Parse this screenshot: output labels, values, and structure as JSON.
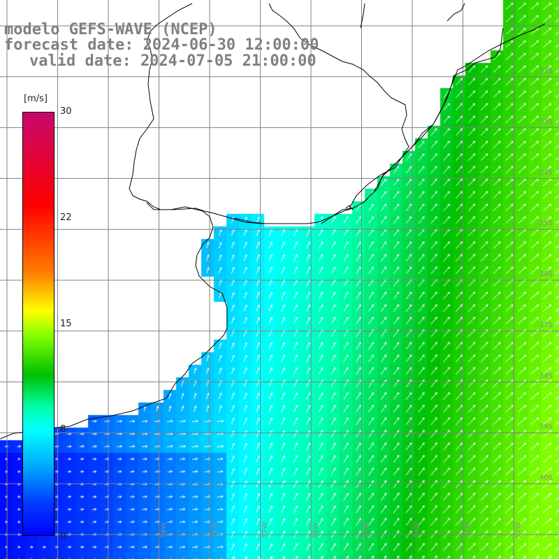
{
  "title": {
    "line1": "modelo GEFS-WAVE (NCEP)",
    "line2": "forecast date: 2024-06-30 12:00:00",
    "line3": "valid date: 2024-07-05 21:00:00"
  },
  "colorbar": {
    "unit": "[m/s]",
    "ticks": [
      "30",
      "22",
      "15",
      "8",
      "0"
    ],
    "colors": [
      "#c8086e",
      "#ff0000",
      "#ff8000",
      "#ffff00",
      "#80ff00",
      "#00c000",
      "#00ffb0",
      "#00ffff",
      "#00b0ff",
      "#0040ff",
      "#0000ff"
    ]
  },
  "lat_labels": [
    "32S",
    "33S",
    "34S",
    "35S",
    "36S",
    "37S",
    "38S",
    "39S",
    "40S"
  ],
  "lon_labels": [
    "59W",
    "58W",
    "57W",
    "56W",
    "55W",
    "54W",
    "53W",
    "52W"
  ],
  "colors": {
    "land": "#ffffff",
    "grid": "#808080",
    "coast": "#000000",
    "arrow": "#ffffff"
  }
}
